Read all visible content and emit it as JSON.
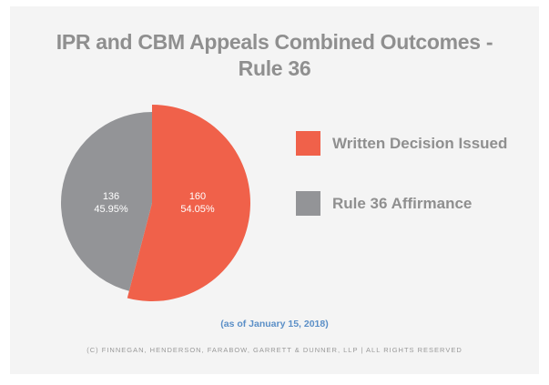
{
  "chart_data": {
    "type": "pie",
    "title": "IPR and CBM Appeals Combined Outcomes - Rule 36",
    "title_lines": [
      "IPR and CBM Appeals Combined Outcomes -",
      "Rule 36"
    ],
    "slices": [
      {
        "label": "Written Decision Issued",
        "value": 160,
        "percent": "54.05%",
        "color": "#f0614a"
      },
      {
        "label": "Rule 36 Affirmance",
        "value": 136,
        "percent": "45.95%",
        "color": "#939497"
      }
    ],
    "legend_position": "right",
    "start_angle": "top, clockwise"
  },
  "footer": {
    "date_note": "(as of January 15, 2018)",
    "copyright": "(C) FINNEGAN, HENDERSON, FARABOW, GARRETT & DUNNER, LLP | ALL RIGHTS RESERVED"
  }
}
